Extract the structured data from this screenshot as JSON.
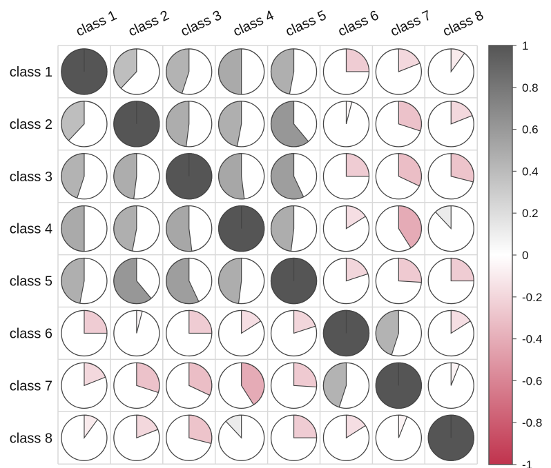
{
  "chart_data": {
    "type": "heatmap",
    "subtype": "correlation-pie",
    "title": "",
    "categories": [
      "class 1",
      "class 2",
      "class 3",
      "class 4",
      "class 5",
      "class 6",
      "class 7",
      "class 8"
    ],
    "values": [
      [
        1,
        0.38,
        0.45,
        0.5,
        0.47,
        -0.25,
        -0.19,
        -0.1
      ],
      [
        0.38,
        1,
        0.48,
        0.47,
        0.61,
        -0.04,
        -0.3,
        -0.19
      ],
      [
        0.45,
        0.48,
        1,
        0.52,
        0.57,
        -0.25,
        -0.32,
        -0.29
      ],
      [
        0.5,
        0.47,
        0.52,
        1,
        0.48,
        -0.16,
        -0.41,
        0.12
      ],
      [
        0.47,
        0.61,
        0.57,
        0.48,
        1,
        -0.2,
        -0.26,
        -0.25
      ],
      [
        -0.25,
        -0.04,
        -0.25,
        -0.16,
        -0.2,
        1,
        0.45,
        -0.16
      ],
      [
        -0.19,
        -0.3,
        -0.32,
        -0.41,
        -0.26,
        0.45,
        1,
        -0.06
      ],
      [
        -0.1,
        -0.19,
        -0.29,
        0.12,
        -0.25,
        -0.16,
        -0.06,
        1
      ]
    ],
    "colorbar": {
      "range": [
        -1,
        1
      ],
      "ticks": [
        "1",
        "0.8",
        "0.6",
        "0.4",
        "0.2",
        "0",
        "-0.2",
        "-0.4",
        "-0.6",
        "-0.8",
        "-1"
      ],
      "colors": {
        "low": "#c0334d",
        "mid": "#ffffff",
        "high": "#555555"
      },
      "placement": "right"
    },
    "grid": true,
    "colors": {
      "grid": "#d9d9d9",
      "pie_edge": "#444444",
      "axis_text": "#111111"
    }
  }
}
